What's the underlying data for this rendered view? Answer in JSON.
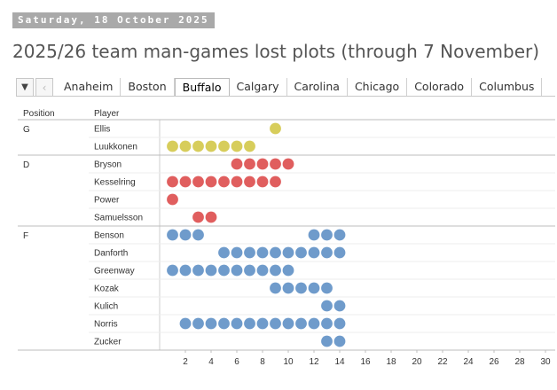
{
  "date_label": "Saturday, 18 October 2025",
  "page_title": "2025/26 team man-games lost plots (through 7 November)",
  "nav": {
    "dropdown_icon": "caret-down-icon",
    "prev_icon": "chevron-left-icon"
  },
  "tabs": [
    {
      "label": "Anaheim",
      "active": false
    },
    {
      "label": "Boston",
      "active": false
    },
    {
      "label": "Buffalo",
      "active": true
    },
    {
      "label": "Calgary",
      "active": false
    },
    {
      "label": "Carolina",
      "active": false
    },
    {
      "label": "Chicago",
      "active": false
    },
    {
      "label": "Colorado",
      "active": false
    },
    {
      "label": "Columbus",
      "active": false
    }
  ],
  "chart_data": {
    "type": "scatter",
    "title": "",
    "column_headers": {
      "position": "Position",
      "player": "Player"
    },
    "x_ticks": [
      2,
      4,
      6,
      8,
      10,
      12,
      14,
      16,
      18,
      20,
      22,
      24,
      26,
      28,
      30
    ],
    "xlim": [
      0,
      30
    ],
    "colors": {
      "G": "#d7cd5b",
      "D": "#e05e5e",
      "F": "#6f9bcb"
    },
    "groups": [
      {
        "position": "G",
        "players": [
          {
            "name": "Ellis",
            "games": [
              9
            ]
          },
          {
            "name": "Luukkonen",
            "games": [
              1,
              2,
              3,
              4,
              5,
              6,
              7
            ]
          }
        ]
      },
      {
        "position": "D",
        "players": [
          {
            "name": "Bryson",
            "games": [
              6,
              7,
              8,
              9,
              10
            ]
          },
          {
            "name": "Kesselring",
            "games": [
              1,
              2,
              3,
              4,
              5,
              6,
              7,
              8,
              9
            ]
          },
          {
            "name": "Power",
            "games": [
              1
            ]
          },
          {
            "name": "Samuelsson",
            "games": [
              3,
              4
            ]
          }
        ]
      },
      {
        "position": "F",
        "players": [
          {
            "name": "Benson",
            "games": [
              1,
              2,
              3,
              12,
              13,
              14
            ]
          },
          {
            "name": "Danforth",
            "games": [
              5,
              6,
              7,
              8,
              9,
              10,
              11,
              12,
              13,
              14
            ]
          },
          {
            "name": "Greenway",
            "games": [
              1,
              2,
              3,
              4,
              5,
              6,
              7,
              8,
              9,
              10
            ]
          },
          {
            "name": "Kozak",
            "games": [
              9,
              10,
              11,
              12,
              13
            ]
          },
          {
            "name": "Kulich",
            "games": [
              13,
              14
            ]
          },
          {
            "name": "Norris",
            "games": [
              2,
              3,
              4,
              5,
              6,
              7,
              8,
              9,
              10,
              11,
              12,
              13,
              14
            ]
          },
          {
            "name": "Zucker",
            "games": [
              13,
              14
            ]
          }
        ]
      }
    ]
  }
}
